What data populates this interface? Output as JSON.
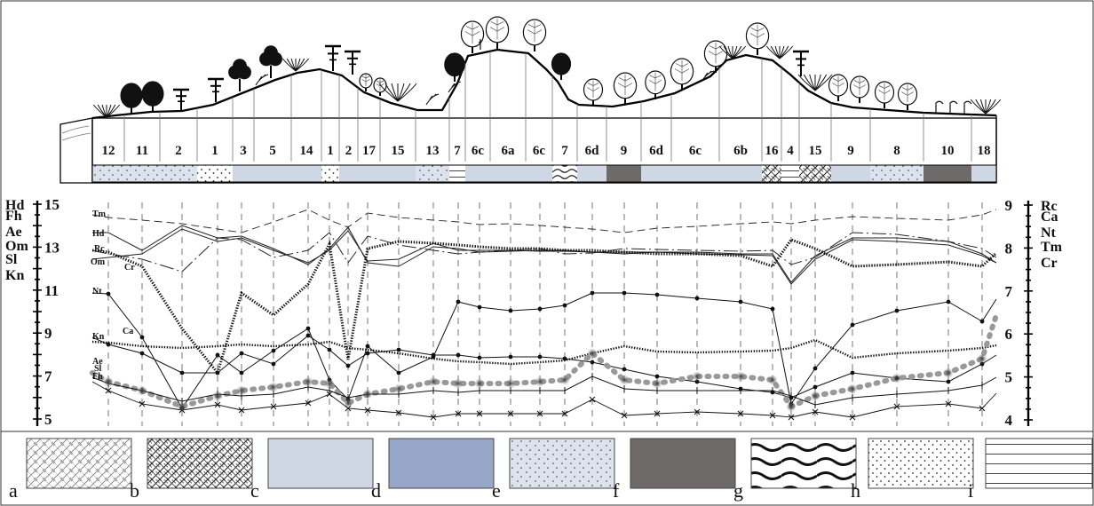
{
  "diagram": {
    "segments": [
      "12",
      "11",
      "2",
      "1",
      "3",
      "5",
      "14",
      "1",
      "2",
      "17",
      "15",
      "13",
      "7",
      "6c",
      "6a",
      "6c",
      "7",
      "6d",
      "9",
      "6d",
      "6c",
      "6b",
      "16",
      "4",
      "15",
      "9",
      "8",
      "10",
      "18"
    ],
    "left_axis": {
      "labels": [
        {
          "value": 15,
          "text": "15",
          "prefix": "Hd"
        },
        {
          "value": 13,
          "text": "13",
          "prefix": ""
        },
        {
          "value": 11,
          "text": "11",
          "prefix": ""
        },
        {
          "value": 9,
          "text": "9",
          "prefix": ""
        },
        {
          "value": 7,
          "text": "7",
          "prefix": ""
        },
        {
          "value": 5,
          "text": "5",
          "prefix": ""
        }
      ],
      "stack_labels": [
        "Fh",
        "Ae",
        "Om",
        "Sl",
        "Kn"
      ]
    },
    "right_axis": {
      "labels": [
        {
          "value": 9,
          "text": "9",
          "suffix": "Rc"
        },
        {
          "value": 8,
          "text": "8",
          "suffix": "Tm"
        },
        {
          "value": 7,
          "text": "7",
          "suffix": ""
        },
        {
          "value": 6,
          "text": "6",
          "suffix": ""
        },
        {
          "value": 5,
          "text": "5",
          "suffix": ""
        },
        {
          "value": 4,
          "text": "4",
          "suffix": ""
        }
      ],
      "stack_labels": [
        "Ca",
        "Nt",
        "Cr"
      ]
    },
    "series_labels": [
      "Tm",
      "Hd",
      "Rc",
      "Cr",
      "Om",
      "Nt",
      "Ca",
      "Kn",
      "Ae",
      "Sl",
      "Fh"
    ],
    "legend": [
      {
        "key": "a",
        "pattern": "light-hatch"
      },
      {
        "key": "b",
        "pattern": "dark-hatch"
      },
      {
        "key": "c",
        "pattern": "pale-blue",
        "color": "#cfd6e4"
      },
      {
        "key": "d",
        "pattern": "blue-grey",
        "color": "#98a6c7"
      },
      {
        "key": "e",
        "pattern": "dots-on-blue",
        "color": "#dde3ee"
      },
      {
        "key": "f",
        "pattern": "dark-grey",
        "color": "#6e6a6a"
      },
      {
        "key": "g",
        "pattern": "waves"
      },
      {
        "key": "h",
        "pattern": "dots"
      },
      {
        "key": "i",
        "pattern": "lines"
      }
    ]
  }
}
